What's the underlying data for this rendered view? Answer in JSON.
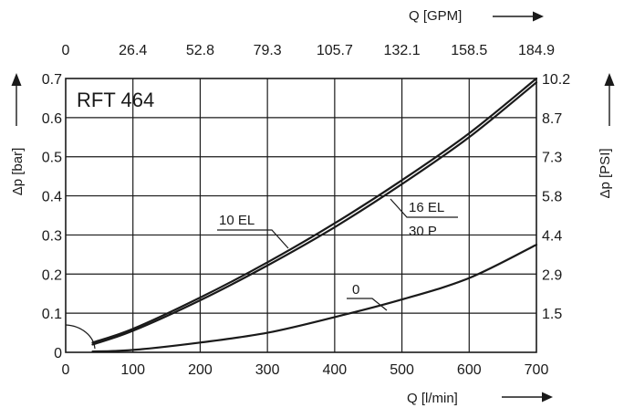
{
  "chart_data": {
    "type": "line",
    "title": "RFT 464",
    "xlabel": "Q [l/min]",
    "ylabel": "Δp [bar]",
    "x2label": "Q [GPM]",
    "y2label": "Δp [PSI]",
    "xlim": [
      0,
      700
    ],
    "ylim": [
      0,
      0.7
    ],
    "grid": true,
    "x_ticks": [
      "0",
      "100",
      "200",
      "300",
      "400",
      "500",
      "600",
      "700"
    ],
    "y_ticks": [
      "0",
      "0.1",
      "0.2",
      "0.3",
      "0.4",
      "0.5",
      "0.6",
      "0.7"
    ],
    "x2_ticks": [
      "0",
      "26.4",
      "52.8",
      "79.3",
      "105.7",
      "132.1",
      "158.5",
      "184.9"
    ],
    "y2_ticks": [
      "1.5",
      "2.9",
      "4.4",
      "5.8",
      "7.3",
      "8.7",
      "10.2"
    ],
    "series": [
      {
        "name": "10 EL",
        "x": [
          40,
          100,
          200,
          300,
          400,
          500,
          600,
          700
        ],
        "values": [
          0.025,
          0.06,
          0.14,
          0.23,
          0.33,
          0.44,
          0.56,
          0.7
        ]
      },
      {
        "name": "16 EL / 30 P",
        "x": [
          40,
          100,
          200,
          300,
          400,
          500,
          600,
          700
        ],
        "values": [
          0.02,
          0.055,
          0.133,
          0.222,
          0.32,
          0.43,
          0.55,
          0.69
        ]
      },
      {
        "name": "0",
        "x": [
          40,
          100,
          200,
          300,
          400,
          500,
          600,
          700
        ],
        "values": [
          0.002,
          0.006,
          0.025,
          0.05,
          0.09,
          0.135,
          0.19,
          0.275
        ]
      }
    ],
    "labels": {
      "s1": "10 EL",
      "s2a": "16 EL",
      "s2b": "30 P",
      "s3": "0"
    }
  }
}
